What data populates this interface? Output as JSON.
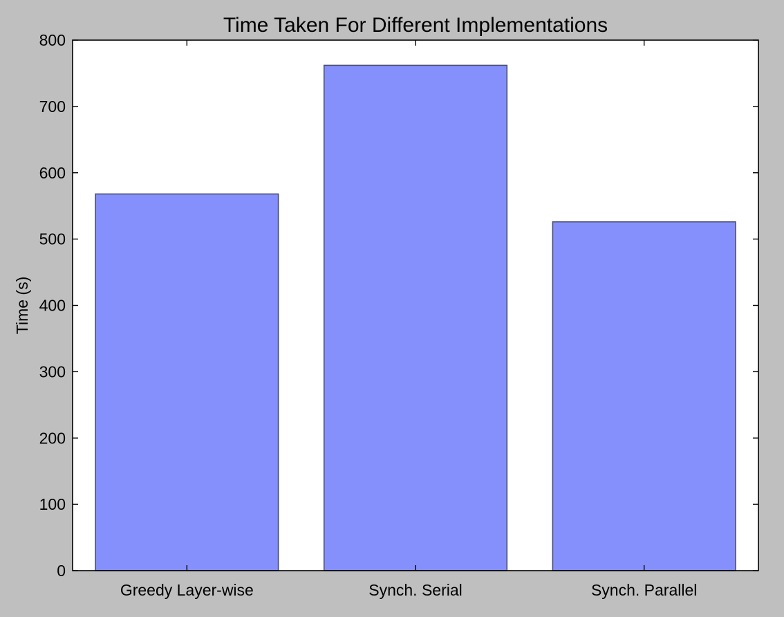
{
  "chart_data": {
    "type": "bar",
    "title": "Time Taken For Different Implementations",
    "xlabel": "",
    "ylabel": "Time (s)",
    "categories": [
      "Greedy Layer-wise",
      "Synch. Serial",
      "Synch. Parallel"
    ],
    "values": [
      568,
      762,
      526
    ],
    "ylim": [
      0,
      800
    ],
    "yticks": [
      0,
      100,
      200,
      300,
      400,
      500,
      600,
      700,
      800
    ],
    "grid": false,
    "legend": "none",
    "colors": {
      "bar_fill": "#8590fd",
      "bar_stroke": "#4a4e6e",
      "plot_background": "#ffffff",
      "figure_background": "#bfbfbf",
      "axes": "#000000"
    }
  }
}
